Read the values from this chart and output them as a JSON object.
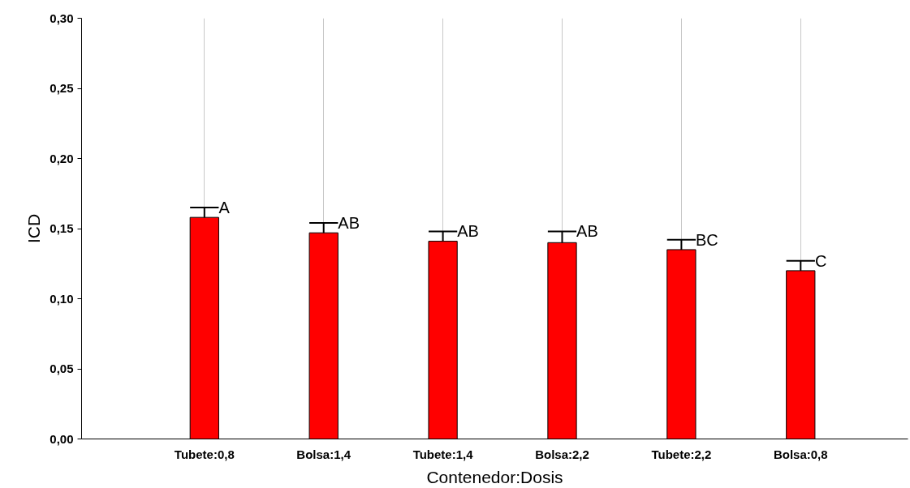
{
  "chart_data": {
    "type": "bar",
    "xlabel": "Contenedor:Dosis",
    "ylabel": "ICD",
    "categories": [
      "Tubete:0,8",
      "Bolsa:1,4",
      "Tubete:1,4",
      "Bolsa:2,2",
      "Tubete:2,2",
      "Bolsa:0,8"
    ],
    "values": [
      0.158,
      0.147,
      0.141,
      0.14,
      0.135,
      0.12
    ],
    "errors": [
      [
        0.158,
        0.165
      ],
      [
        0.147,
        0.154
      ],
      [
        0.141,
        0.148
      ],
      [
        0.14,
        0.148
      ],
      [
        0.135,
        0.142
      ],
      [
        0.12,
        0.127
      ]
    ],
    "color": "#ff0000",
    "ylim": [
      0,
      0.3
    ],
    "yticks": [
      {
        "value": 0,
        "label": "0,00"
      },
      {
        "value": 0.05,
        "label": "0,05"
      },
      {
        "value": 0.1,
        "label": "0,10"
      },
      {
        "value": 0.15,
        "label": "0,15"
      },
      {
        "value": 0.2,
        "label": "0,20"
      },
      {
        "value": 0.25,
        "label": "0,25"
      },
      {
        "value": 0.3,
        "label": "0,30"
      }
    ],
    "grid": "x",
    "annotations": [
      {
        "text": "A",
        "x": "Tubete:0,8",
        "y": 0.165
      },
      {
        "text": "AB",
        "x": "Bolsa:1,4",
        "y": 0.154
      },
      {
        "text": "AB",
        "x": "Tubete:1,4",
        "y": 0.148
      },
      {
        "text": "AB",
        "x": "Bolsa:2,2",
        "y": 0.148
      },
      {
        "text": "BC",
        "x": "Tubete:2,2",
        "y": 0.142
      },
      {
        "text": "C",
        "x": "Bolsa:0,8",
        "y": 0.127
      }
    ]
  }
}
